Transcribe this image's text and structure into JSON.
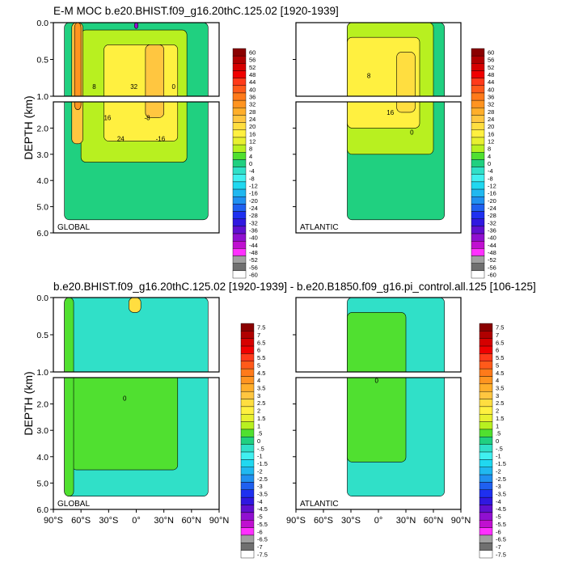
{
  "titles": {
    "top": "E-M MOC  b.e20.BHIST.f09_g16.20thC.125.02 [1920-1939]",
    "bottom": "b.e20.BHIST.f09_g16.20thC.125.02 [1920-1939] - b.e20.B1850.f09_g16.pi_control.all.125 [106-125]"
  },
  "axis": {
    "ylabel": "DEPTH (km)",
    "upper_ticks": [
      "0.0",
      "0.5",
      "1.0"
    ],
    "lower_ticks": [
      "2.0",
      "3.0",
      "4.0",
      "5.0",
      "6.0"
    ],
    "xticks": [
      "90°S",
      "60°S",
      "30°S",
      "0°",
      "30°N",
      "60°N",
      "90°N"
    ]
  },
  "panel_labels": {
    "global": "GLOBAL",
    "atlantic": "ATLANTIC"
  },
  "colorbar_top": {
    "labels": [
      "60",
      "56",
      "52",
      "48",
      "44",
      "40",
      "36",
      "32",
      "28",
      "24",
      "20",
      "16",
      "12",
      "8",
      "4",
      "0",
      "-4",
      "-8",
      "-12",
      "-16",
      "-20",
      "-24",
      "-28",
      "-32",
      "-36",
      "-40",
      "-44",
      "-48",
      "-52",
      "-56",
      "-60"
    ],
    "colors": [
      "#8a0000",
      "#b00000",
      "#d60000",
      "#f00000",
      "#ff3a1a",
      "#ff5a1a",
      "#ff7a1a",
      "#ff9420",
      "#ffae2a",
      "#ffc640",
      "#ffde40",
      "#fff040",
      "#e8f030",
      "#b8f020",
      "#50e030",
      "#20d080",
      "#30e0c8",
      "#40f0f0",
      "#20d8f0",
      "#20b8f0",
      "#2090f0",
      "#1f60f0",
      "#1f30f0",
      "#3018e0",
      "#6010d0",
      "#9010d0",
      "#c010d0",
      "#ff30ff",
      "#a0a0a0",
      "#707070",
      "#ffffff"
    ]
  },
  "colorbar_bottom": {
    "labels": [
      "7.5",
      "7",
      "6.5",
      "6",
      "5.5",
      "5",
      "4.5",
      "4",
      "3.5",
      "3",
      "2.5",
      "2",
      "1.5",
      "1",
      ".5",
      "0",
      "-.5",
      "-1",
      "-1.5",
      "-2",
      "-2.5",
      "-3",
      "-3.5",
      "-4",
      "-4.5",
      "-5",
      "-5.5",
      "-6",
      "-6.5",
      "-7",
      "-7.5"
    ],
    "colors": [
      "#8a0000",
      "#b00000",
      "#d60000",
      "#f00000",
      "#ff3a1a",
      "#ff5a1a",
      "#ff7a1a",
      "#ff9420",
      "#ffae2a",
      "#ffc640",
      "#ffde40",
      "#fff040",
      "#e8f030",
      "#b8f020",
      "#50e030",
      "#20d080",
      "#30e0c8",
      "#40f0f0",
      "#20d8f0",
      "#20b8f0",
      "#2090f0",
      "#1f60f0",
      "#1f30f0",
      "#3018e0",
      "#6010d0",
      "#9010d0",
      "#c010d0",
      "#ff30ff",
      "#a0a0a0",
      "#707070",
      "#ffffff"
    ]
  },
  "chart_data": [
    {
      "type": "heatmap",
      "title": "E-M MOC  b.e20.BHIST.f09_g16.20thC.125.02 [1920-1939]",
      "panel": "GLOBAL",
      "xlabel": "",
      "ylabel": "DEPTH (km)",
      "xlim": [
        -90,
        90
      ],
      "ylim": [
        6.0,
        0.0
      ],
      "contour_labels": [
        "8",
        "16",
        "24",
        "32",
        "-8",
        "-16",
        "0"
      ],
      "regions": [
        {
          "lat": [
            -78,
            78
          ],
          "depth": [
            0,
            5.5
          ],
          "value": 0
        },
        {
          "lat": [
            -60,
            55
          ],
          "depth": [
            0.1,
            3.3
          ],
          "value": 8
        },
        {
          "lat": [
            -35,
            45
          ],
          "depth": [
            0.3,
            2.5
          ],
          "value": 16
        },
        {
          "lat": [
            -70,
            -58
          ],
          "depth": [
            0,
            2.6
          ],
          "value": 24
        },
        {
          "lat": [
            -67,
            -60
          ],
          "depth": [
            0,
            1.3
          ],
          "value": 32
        },
        {
          "lat": [
            10,
            30
          ],
          "depth": [
            0.3,
            1.6
          ],
          "value": 24
        },
        {
          "lat": [
            -2,
            2
          ],
          "depth": [
            0,
            0.08
          ],
          "value": -40
        }
      ]
    },
    {
      "type": "heatmap",
      "panel": "ATLANTIC",
      "xlabel": "",
      "ylabel": "",
      "xlim": [
        -90,
        90
      ],
      "ylim": [
        6.0,
        0.0
      ],
      "contour_labels": [
        "8",
        "16",
        "0"
      ],
      "regions": [
        {
          "lat": [
            -34,
            72
          ],
          "depth": [
            0,
            5.5
          ],
          "value": 0
        },
        {
          "lat": [
            -34,
            60
          ],
          "depth": [
            0,
            3.0
          ],
          "value": 8
        },
        {
          "lat": [
            -34,
            45
          ],
          "depth": [
            0.2,
            2.0
          ],
          "value": 16
        },
        {
          "lat": [
            20,
            40
          ],
          "depth": [
            0.4,
            1.4
          ],
          "value": 20
        }
      ]
    },
    {
      "type": "heatmap",
      "title": "b.e20.BHIST.f09_g16.20thC.125.02 [1920-1939] - b.e20.B1850.f09_g16.pi_control.all.125 [106-125]",
      "panel": "GLOBAL",
      "xlabel": "",
      "ylabel": "DEPTH (km)",
      "xlim": [
        -90,
        90
      ],
      "ylim": [
        6.0,
        0.0
      ],
      "contour_labels": [
        "0"
      ],
      "regions": [
        {
          "lat": [
            -78,
            78
          ],
          "depth": [
            0,
            5.5
          ],
          "value": -0.25
        },
        {
          "lat": [
            -70,
            45
          ],
          "depth": [
            1.0,
            4.5
          ],
          "value": 0.5
        },
        {
          "lat": [
            -78,
            -68
          ],
          "depth": [
            0,
            5.5
          ],
          "value": 0.75
        },
        {
          "lat": [
            -8,
            5
          ],
          "depth": [
            0,
            0.2
          ],
          "value": 2.5
        }
      ]
    },
    {
      "type": "heatmap",
      "panel": "ATLANTIC",
      "xlabel": "",
      "ylabel": "",
      "xlim": [
        -90,
        90
      ],
      "ylim": [
        6.0,
        0.0
      ],
      "contour_labels": [
        "0"
      ],
      "regions": [
        {
          "lat": [
            -34,
            72
          ],
          "depth": [
            0,
            5.5
          ],
          "value": -0.25
        },
        {
          "lat": [
            -34,
            30
          ],
          "depth": [
            0.2,
            4.2
          ],
          "value": 0.5
        }
      ]
    }
  ]
}
